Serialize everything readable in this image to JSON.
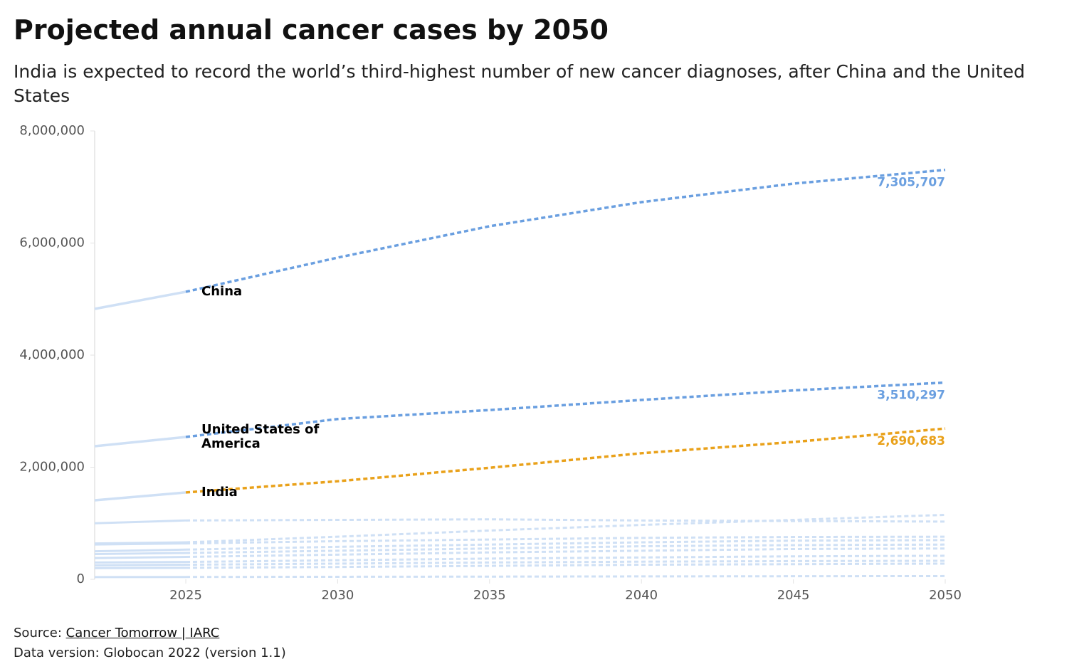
{
  "chart_data": {
    "type": "line",
    "title": "Projected annual cancer cases by 2050",
    "subtitle": "India is expected to record the world’s third-highest number of new cancer diagnoses, after China and the United States",
    "x": [
      2022,
      2025,
      2030,
      2035,
      2040,
      2045,
      2050
    ],
    "xlim": [
      2022,
      2050
    ],
    "xticks": [
      2025,
      2030,
      2035,
      2040,
      2045,
      2050
    ],
    "ylim": [
      0,
      8000000
    ],
    "yticks": [
      0,
      {
        "value": 2000000,
        "label": "2,000,000"
      },
      {
        "value": 4000000,
        "label": "4,000,000"
      },
      {
        "value": 6000000,
        "label": "6,000,000"
      },
      {
        "value": 8000000,
        "label": "8,000,000"
      }
    ],
    "series": [
      {
        "color": "#cfe0f5",
        "values": [
          1000000,
          1050000,
          1060000,
          1070000,
          1050000,
          1040000,
          1030000
        ]
      },
      {
        "color": "#cfe0f5",
        "values": [
          640000,
          660000,
          760000,
          870000,
          970000,
          1060000,
          1150000
        ]
      },
      {
        "color": "#cfe0f5",
        "values": [
          620000,
          640000,
          680000,
          710000,
          740000,
          755000,
          760000
        ]
      },
      {
        "color": "#cfe0f5",
        "values": [
          500000,
          530000,
          580000,
          620000,
          660000,
          690000,
          700000
        ]
      },
      {
        "color": "#cfe0f5",
        "values": [
          450000,
          470000,
          510000,
          550000,
          590000,
          610000,
          620000
        ]
      },
      {
        "color": "#cfe0f5",
        "values": [
          380000,
          400000,
          440000,
          480000,
          510000,
          540000,
          550000
        ]
      },
      {
        "color": "#cfe0f5",
        "values": [
          300000,
          310000,
          340000,
          370000,
          390000,
          410000,
          420000
        ]
      },
      {
        "color": "#cfe0f5",
        "values": [
          250000,
          260000,
          280000,
          300000,
          315000,
          325000,
          330000
        ]
      },
      {
        "color": "#cfe0f5",
        "values": [
          200000,
          205000,
          220000,
          240000,
          260000,
          270000,
          280000
        ]
      },
      {
        "color": "#cfe0f5",
        "values": [
          40000,
          42000,
          45000,
          48000,
          52000,
          55000,
          58000
        ]
      },
      {
        "name": "China",
        "color": "#6a9fe0",
        "values": [
          4825000,
          5130000,
          5740000,
          6300000,
          6730000,
          7060000,
          7305707
        ],
        "value_labels": [
          null,
          null,
          null,
          null,
          null,
          null,
          "7,305,707"
        ]
      },
      {
        "name": "United States of America",
        "color": "#6a9fe0",
        "values": [
          2375000,
          2540000,
          2860000,
          3020000,
          3200000,
          3370000,
          3510297
        ],
        "value_labels": [
          null,
          null,
          null,
          null,
          null,
          null,
          "3,510,297"
        ]
      },
      {
        "name": "India",
        "color": "#e9a11a",
        "values": [
          1410000,
          1550000,
          1750000,
          1990000,
          2250000,
          2450000,
          2690683
        ],
        "value_labels": [
          null,
          null,
          null,
          null,
          null,
          null,
          "2,690,683"
        ]
      }
    ],
    "source_label": "Source:",
    "source_link": "Cancer Tomorrow | IARC",
    "data_version": "Data version: Globocan 2022 (version 1.1)"
  }
}
